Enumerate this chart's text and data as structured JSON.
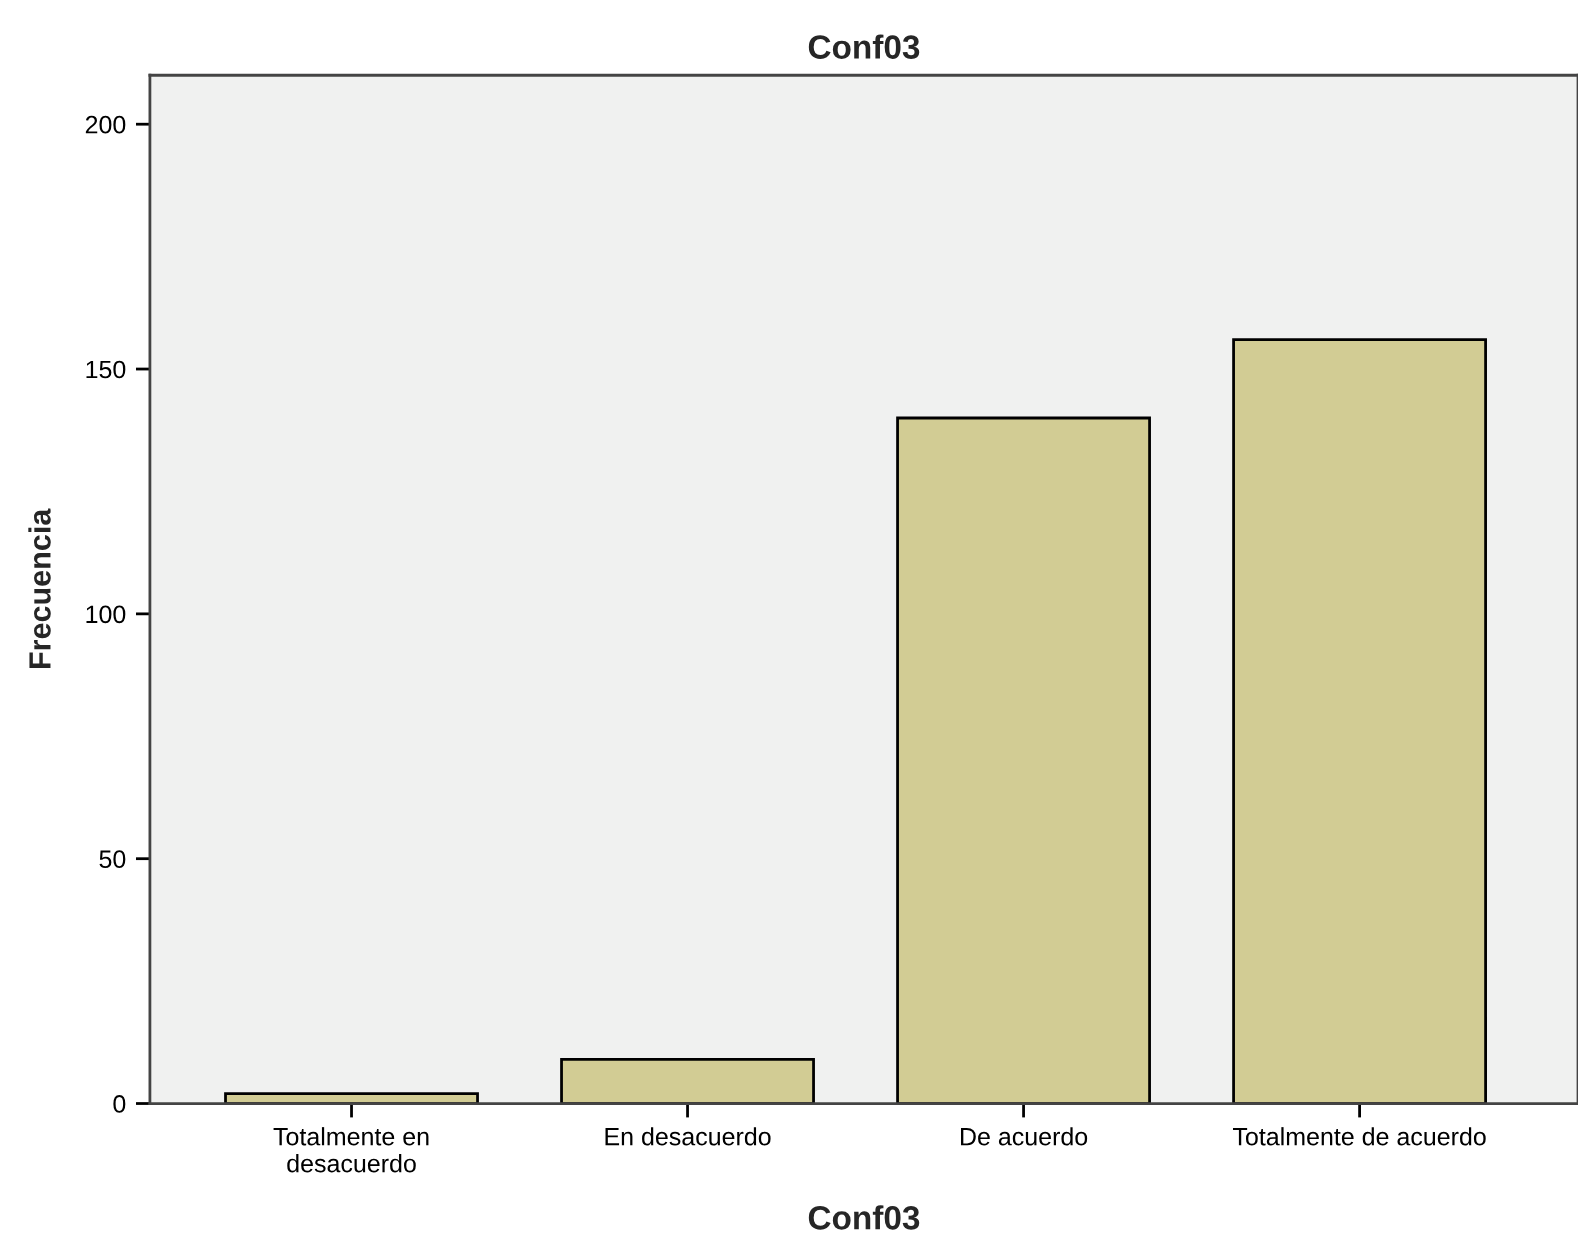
{
  "chart_data": {
    "type": "bar",
    "title": "Conf03",
    "xlabel": "Conf03",
    "ylabel": "Frecuencia",
    "categories": [
      "Totalmente en\ndesacuerdo",
      "En desacuerdo",
      "De acuerdo",
      "Totalmente de acuerdo"
    ],
    "values": [
      2,
      9,
      140,
      156
    ],
    "color": "#d2cc94",
    "ylim": [
      0,
      210
    ],
    "yticks": [
      0,
      50,
      100,
      150,
      200
    ],
    "grid": false
  }
}
